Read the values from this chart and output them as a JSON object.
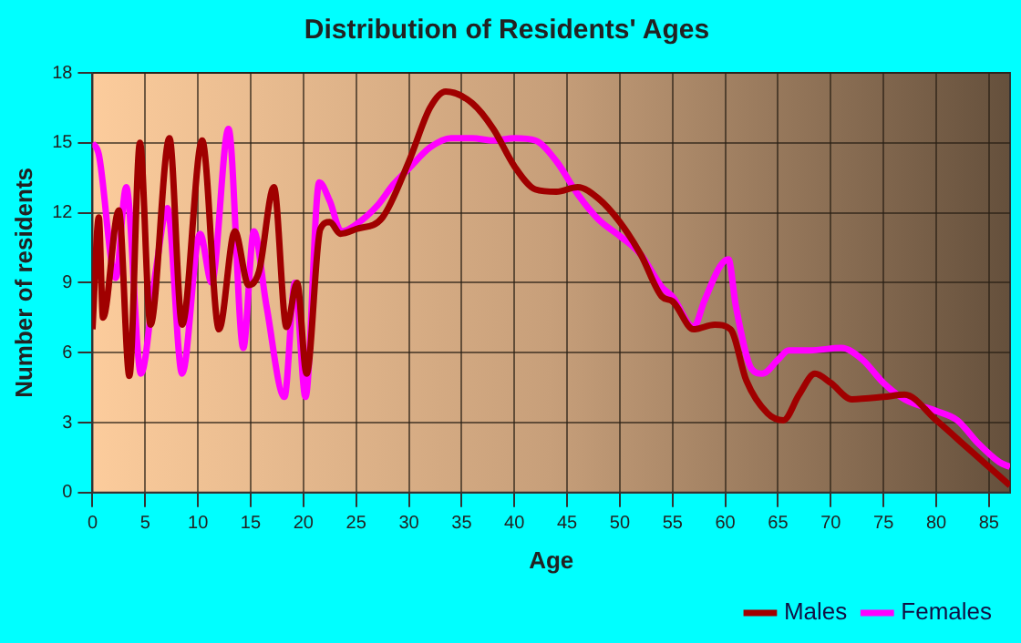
{
  "chart_data": {
    "type": "line",
    "title": "Distribution of Residents' Ages",
    "xlabel": "Age",
    "ylabel": "Number of residents",
    "xlim": [
      0,
      87
    ],
    "xticks": [
      0,
      5,
      10,
      15,
      20,
      25,
      30,
      35,
      40,
      45,
      50,
      55,
      60,
      65,
      70,
      75,
      80,
      85
    ],
    "ylim": [
      0,
      18
    ],
    "yticks": [
      0,
      3,
      6,
      9,
      12,
      15,
      18
    ],
    "grid": true,
    "legend": "bottom right",
    "marker": "none",
    "line_style": "solid",
    "series": [
      {
        "name": "Males",
        "color": "#a00000",
        "x": [
          0,
          0.6,
          1,
          2.5,
          3.5,
          4.5,
          5.5,
          7.3,
          8.5,
          10.4,
          12,
          13.5,
          14.8,
          15.8,
          17.2,
          18.4,
          19.4,
          20.3,
          21.6,
          22.5,
          23.5,
          25,
          27.5,
          30,
          32,
          33.5,
          36,
          38,
          40,
          42,
          44,
          46,
          48,
          50,
          52,
          54,
          55,
          57,
          59,
          60.5,
          62,
          64,
          65.5,
          67,
          68.5,
          70,
          72,
          75,
          77,
          80,
          83,
          86,
          87
        ],
        "values": [
          7,
          11.8,
          7.5,
          12.1,
          5,
          15,
          7.2,
          15.2,
          7.2,
          15.1,
          7,
          11.2,
          8.9,
          9.5,
          13.1,
          7.1,
          9,
          5.1,
          11.3,
          11.6,
          11.1,
          11.3,
          11.8,
          14.2,
          16.5,
          17.2,
          16.7,
          15.6,
          14,
          13,
          12.9,
          13.1,
          12.6,
          11.6,
          10.2,
          8.4,
          8.2,
          7,
          7.2,
          7,
          4.8,
          3.4,
          3.1,
          4.2,
          5.1,
          4.7,
          4,
          4.1,
          4.2,
          3.1,
          1.9,
          0.7,
          0.3
        ]
      },
      {
        "name": "Females",
        "color": "#ff00ff",
        "x": [
          0,
          0.6,
          2.2,
          3.2,
          4.6,
          6,
          7.1,
          8.5,
          10.2,
          11.3,
          12.9,
          14.3,
          15.3,
          16.5,
          18.2,
          19.2,
          20.2,
          21.5,
          22.5,
          23.6,
          25,
          27,
          28.5,
          30,
          32,
          34,
          36,
          38,
          40,
          42,
          44,
          46,
          48,
          50,
          52,
          54,
          55,
          57,
          58,
          59.5,
          60.3,
          61,
          62.5,
          63.5,
          65,
          66,
          68,
          71,
          73,
          75,
          77,
          80,
          82,
          84,
          86,
          87
        ],
        "values": [
          15,
          14.5,
          9.2,
          13.1,
          5.1,
          9.5,
          12.2,
          5.1,
          11.1,
          9,
          15.6,
          6.2,
          11.2,
          8,
          4.1,
          9,
          4.1,
          13.3,
          12.5,
          11.2,
          11.5,
          12.3,
          13.2,
          13.9,
          14.8,
          15.2,
          15.2,
          15.1,
          15.2,
          15.1,
          14.2,
          12.8,
          11.7,
          11,
          10.2,
          8.8,
          8.4,
          7.1,
          8.2,
          9.7,
          10,
          8,
          5.3,
          5.1,
          5.7,
          6.1,
          6.1,
          6.2,
          5.7,
          4.7,
          4,
          3.5,
          3.1,
          2.1,
          1.3,
          1.1
        ]
      }
    ]
  }
}
